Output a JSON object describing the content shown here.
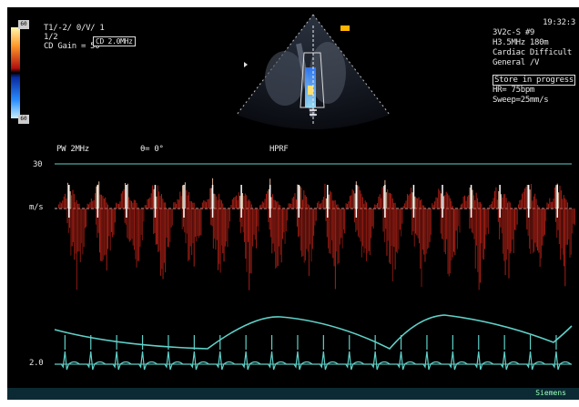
{
  "header_left": {
    "line1": "T1/-2/ 0/V/ 1",
    "line2_prefix": "1/2",
    "cd_freq": "CD 2.0MHz",
    "line3": "CD Gain = 50",
    "scale_top": "60",
    "scale_bottom": "60"
  },
  "header_right": {
    "time": "19:32:3",
    "line1": "3V2c-S    #9",
    "line2": "H3.5MHz   180m",
    "line3": "Cardiac Difficult",
    "line4": "General /V",
    "store": "Store in progress",
    "hr": "HR= 75bpm",
    "sweep": "Sweep=25mm/s"
  },
  "doppler": {
    "mode": "PW 2MHz",
    "angle": "θ=  0°",
    "prf": "HPRF",
    "scale_top": "30",
    "unit": "m/s",
    "scale_bottom": "2.0"
  },
  "footer": {
    "brand": "Siemens"
  },
  "colors": {
    "background": "#000000",
    "ecg": "#5fd0c8",
    "doppler": "#c8261a",
    "doppler_hi": "#ffd0b0"
  }
}
